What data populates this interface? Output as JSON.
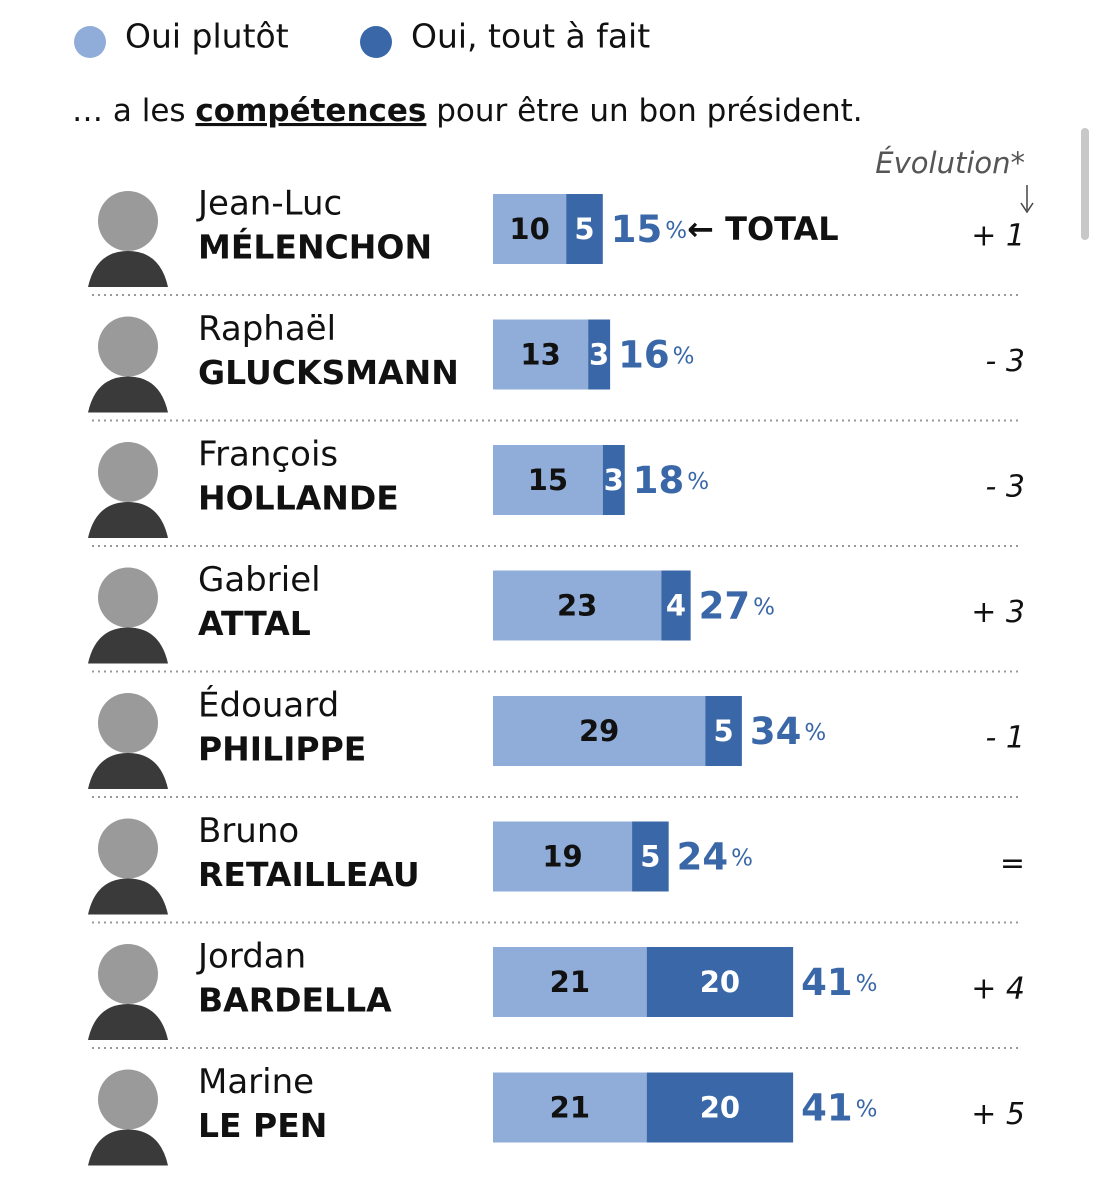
{
  "chart_data": {
    "type": "bar",
    "orientation": "horizontal",
    "stacked": true,
    "subtitle": [
      "… a les ",
      "compétences",
      " pour être un bon président."
    ],
    "categories": [
      [
        "Jean-Luc",
        "MÉLENCHON"
      ],
      [
        "Raphaël",
        "GLUCKSMANN"
      ],
      [
        "François",
        "HOLLANDE"
      ],
      [
        "Gabriel",
        "ATTAL"
      ],
      [
        "Édouard",
        "PHILIPPE"
      ],
      [
        "Bruno",
        "RETAILLEAU"
      ],
      [
        "Jordan",
        "BARDELLA"
      ],
      [
        "Marine",
        "LE PEN"
      ]
    ],
    "series": [
      {
        "name": "Oui plutôt",
        "color": "#8fadd8",
        "values": [
          10,
          13,
          15,
          23,
          29,
          19,
          21,
          21
        ]
      },
      {
        "name": "Oui, tout à fait",
        "color": "#3a67a8",
        "values": [
          5,
          3,
          3,
          4,
          5,
          5,
          20,
          20
        ]
      }
    ],
    "totals": [
      15,
      16,
      18,
      27,
      34,
      24,
      41,
      41
    ],
    "unit": "%",
    "total_annotation": "← TOTAL",
    "evolution": {
      "label": "Évolution*",
      "values": [
        1,
        -3,
        -3,
        3,
        -1,
        0,
        4,
        5
      ],
      "value_labels": [
        "+ 1",
        "- 3",
        "- 3",
        "+ 3",
        "- 1",
        "=",
        "+ 4",
        "+ 5"
      ]
    }
  }
}
